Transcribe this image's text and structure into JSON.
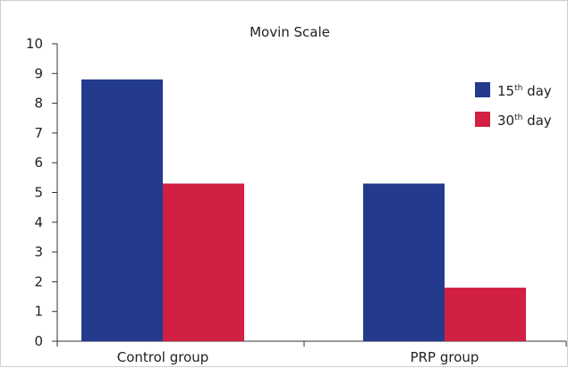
{
  "chart_data": {
    "type": "bar",
    "title": "Movin Scale",
    "categories": [
      "Control group",
      "PRP group"
    ],
    "series": [
      {
        "name": "15th day",
        "name_base": "15",
        "name_sup": "th",
        "name_rest": " day",
        "color": "#243a8c",
        "values": [
          8.8,
          5.3
        ]
      },
      {
        "name": "30th day",
        "name_base": "30",
        "name_sup": "th",
        "name_rest": " day",
        "color": "#d21f44",
        "values": [
          5.3,
          1.8
        ]
      }
    ],
    "ylim": [
      0,
      10
    ],
    "yticks": [
      0,
      1,
      2,
      3,
      4,
      5,
      6,
      7,
      8,
      9,
      10
    ],
    "xlabel": "",
    "ylabel": "",
    "grid": false,
    "legend_position": "top-right"
  }
}
